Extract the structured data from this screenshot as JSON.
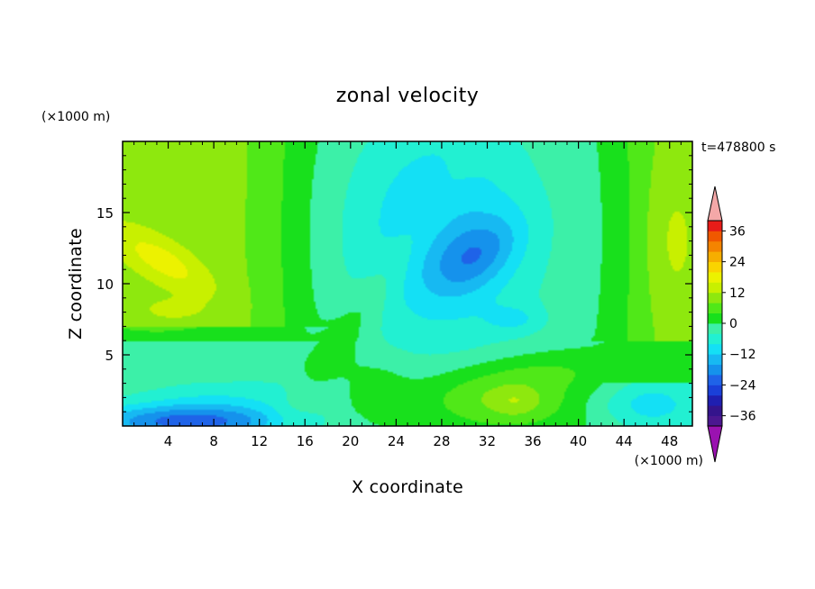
{
  "chart_data": {
    "type": "heatmap",
    "title": "zonal velocity",
    "xlabel": "X coordinate",
    "ylabel": "Z coordinate",
    "x_unit": "(×1000 m)",
    "y_unit": "(×1000 m)",
    "time_label": "t=478800 s",
    "xlim": [
      0,
      50
    ],
    "ylim": [
      0,
      20
    ],
    "x_ticks": [
      4,
      8,
      12,
      16,
      20,
      24,
      28,
      32,
      36,
      40,
      44,
      48
    ],
    "y_ticks": [
      5,
      10,
      15
    ],
    "grid": false,
    "contour_interval": 4,
    "colorbar": {
      "min": -40,
      "max": 40,
      "step": 4,
      "tick_labels": [
        36,
        24,
        12,
        0,
        -12,
        -24,
        -36
      ],
      "tick_label_text": [
        "36",
        "24",
        "12",
        "0",
        "−12",
        "−24",
        "−36"
      ],
      "extend": "both",
      "over_color": "#f4a8a8",
      "under_color": "#9a12b0",
      "colors": [
        "#4b1790",
        "#34148c",
        "#1f1fb0",
        "#1a40d8",
        "#1f63e8",
        "#1592ec",
        "#17b9f2",
        "#14e0f5",
        "#22f0d2",
        "#3cf0a8",
        "#18e01c",
        "#50e818",
        "#8ee80e",
        "#c8f000",
        "#ecf200",
        "#fad400",
        "#f6ae00",
        "#f48400",
        "#f05800",
        "#e81c18"
      ]
    },
    "field_description_points": [
      {
        "x": 4,
        "z": 12,
        "value": 16
      },
      {
        "x": 30,
        "z": 12,
        "value": -20
      },
      {
        "x": 34,
        "z": 1.5,
        "value": 12
      },
      {
        "x": 4,
        "z": 0.5,
        "value": -24
      },
      {
        "x": 48,
        "z": 13,
        "value": 12
      },
      {
        "x": 18,
        "z": 12,
        "value": 2
      }
    ]
  }
}
